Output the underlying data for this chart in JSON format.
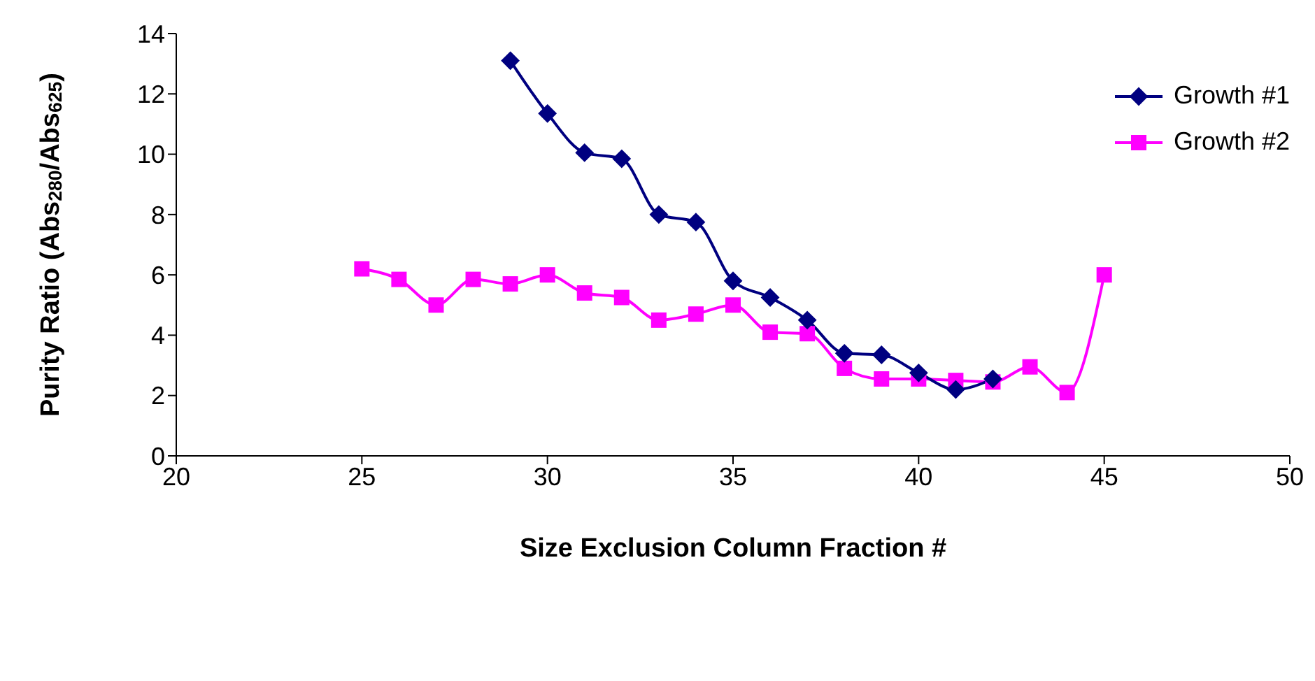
{
  "chart_data": {
    "type": "line",
    "xlabel": "Size Exclusion Column Fraction #",
    "ylabel": "Purity Ratio (Abs$_{280}$/Abs$_{625}$)",
    "series": [
      {
        "name": "Growth #1",
        "color": "#000080",
        "marker": "diamond",
        "x": [
          29,
          30,
          31,
          32,
          33,
          34,
          35,
          36,
          37,
          38,
          39,
          40,
          41,
          42
        ],
        "values": [
          13.1,
          11.35,
          10.05,
          9.85,
          8.0,
          7.75,
          5.8,
          5.25,
          4.5,
          3.4,
          3.35,
          2.75,
          2.2,
          2.55
        ]
      },
      {
        "name": "Growth #2",
        "color": "#ff00ff",
        "marker": "square",
        "x": [
          25,
          26,
          27,
          28,
          29,
          30,
          31,
          32,
          33,
          34,
          35,
          36,
          37,
          38,
          39,
          40,
          41,
          42,
          43,
          44,
          45
        ],
        "values": [
          6.2,
          5.85,
          5.0,
          5.85,
          5.7,
          6.0,
          5.4,
          5.25,
          4.5,
          4.7,
          5.0,
          4.1,
          4.05,
          2.9,
          2.55,
          2.55,
          2.5,
          2.45,
          2.95,
          2.1,
          6.0
        ]
      }
    ],
    "xlim": [
      20,
      50
    ],
    "xticks": [
      20,
      25,
      30,
      35,
      40,
      45,
      50
    ],
    "ylim": [
      0,
      14
    ],
    "yticks": [
      0,
      2,
      4,
      6,
      8,
      10,
      12,
      14
    ],
    "grid": false,
    "legend": "top right"
  }
}
